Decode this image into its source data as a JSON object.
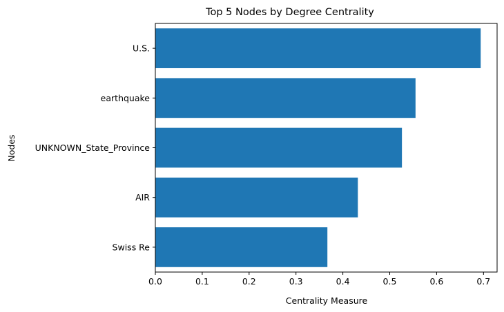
{
  "chart_data": {
    "type": "bar",
    "orientation": "horizontal",
    "title": "Top 5 Nodes by Degree Centrality",
    "xlabel": "Centrality Measure",
    "ylabel": "Nodes",
    "categories": [
      "U.S.",
      "earthquake",
      "UNKNOWN_State_Province",
      "AIR",
      "Swiss Re"
    ],
    "values": [
      0.694,
      0.555,
      0.526,
      0.432,
      0.367
    ],
    "xlim": [
      0,
      0.729
    ],
    "xticks": [
      "0.0",
      "0.1",
      "0.2",
      "0.3",
      "0.4",
      "0.5",
      "0.6",
      "0.7"
    ],
    "bar_color": "#1f77b4",
    "grid": false,
    "legend": "none"
  }
}
